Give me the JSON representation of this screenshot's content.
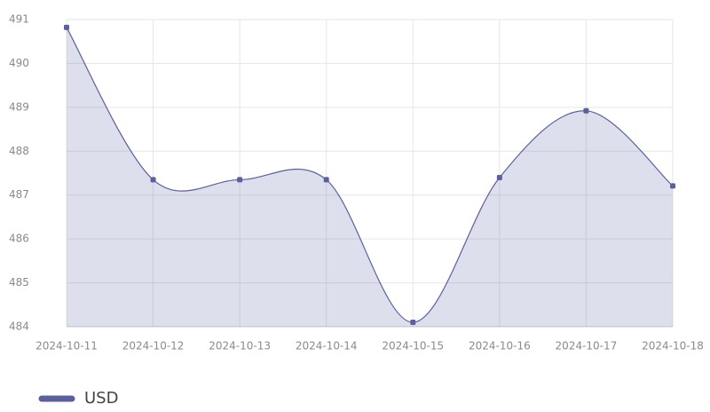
{
  "chart_data": {
    "type": "area",
    "categories": [
      "2024-10-11",
      "2024-10-12",
      "2024-10-13",
      "2024-10-14",
      "2024-10-15",
      "2024-10-16",
      "2024-10-17",
      "2024-10-18"
    ],
    "series": [
      {
        "name": "USD",
        "color": "#5b5f9e",
        "values": [
          490.82,
          487.35,
          487.35,
          487.35,
          484.1,
          487.4,
          488.92,
          487.21
        ]
      }
    ],
    "ylim": [
      484,
      491
    ],
    "yticks": [
      484,
      485,
      486,
      487,
      488,
      489,
      490,
      491
    ],
    "grid": true
  }
}
